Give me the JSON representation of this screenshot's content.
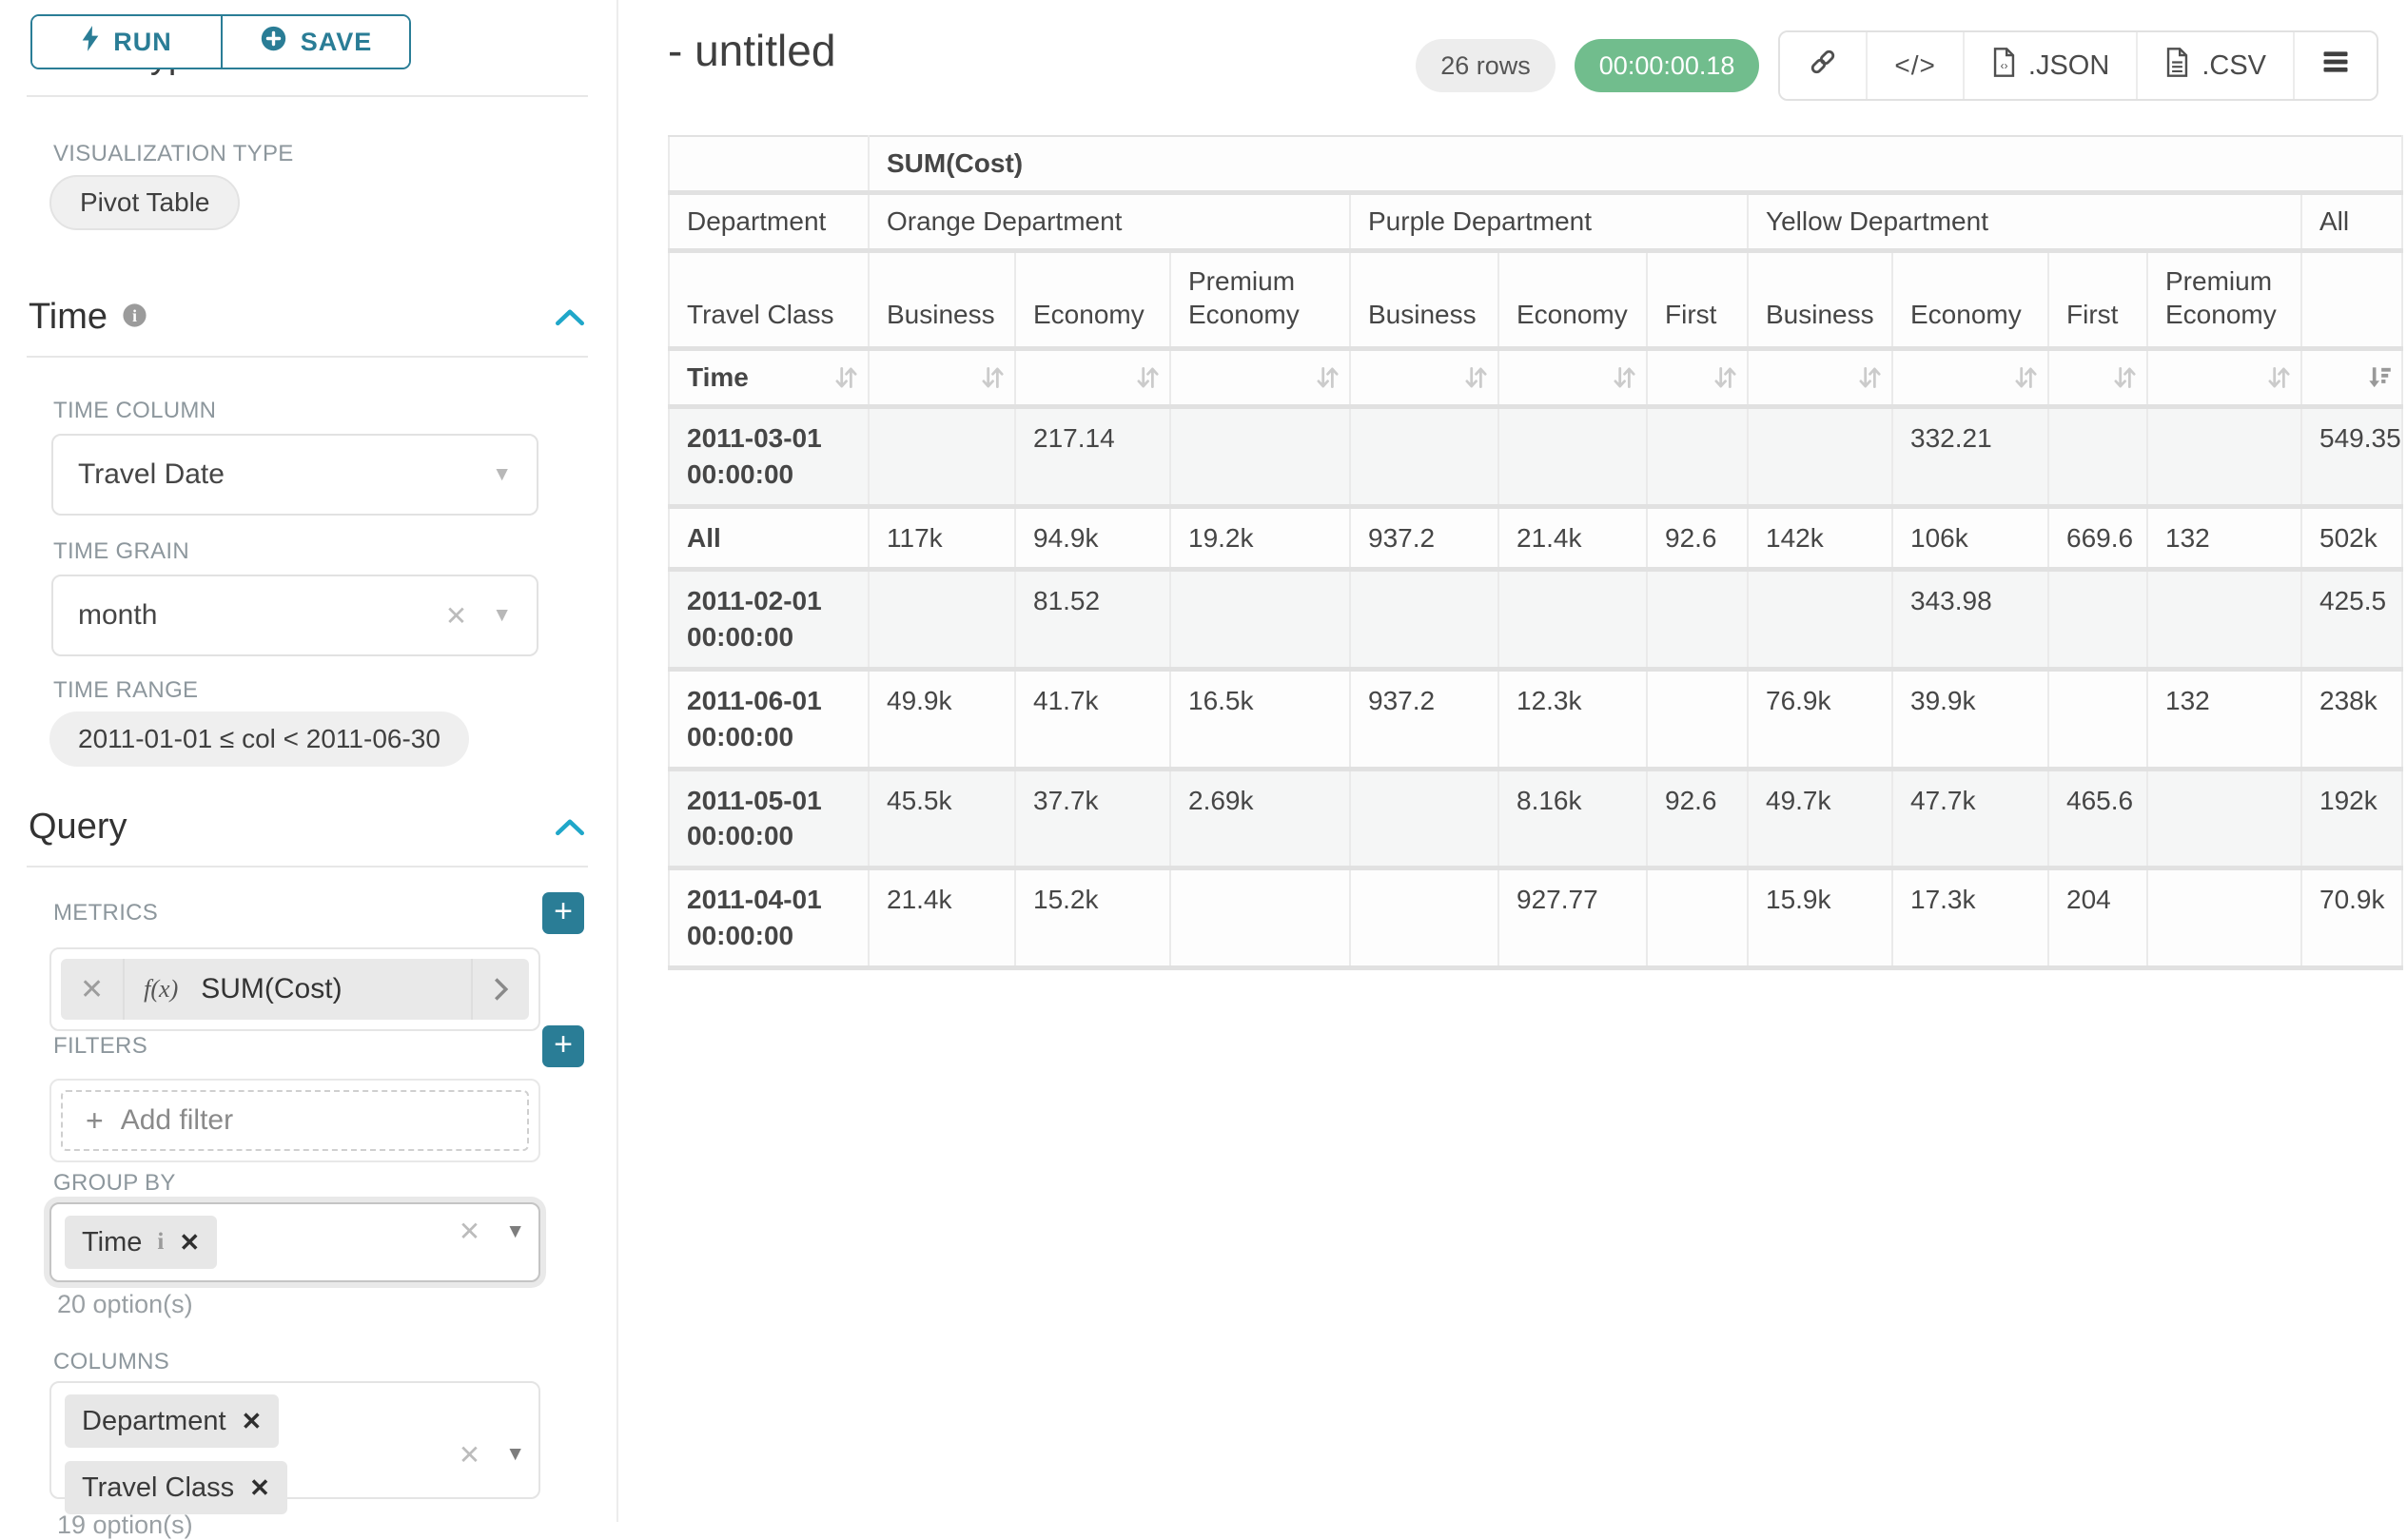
{
  "colors": {
    "accent": "#2a7d96",
    "section_chevron": "#20a7c9",
    "timer_green": "#71bd8d",
    "badge_gray": "#ededed"
  },
  "toolbar": {
    "run_label": "RUN",
    "save_label": "SAVE"
  },
  "sidebar": {
    "chart_type_heading": "Chart Type",
    "viz_type_label": "VISUALIZATION TYPE",
    "viz_type_value": "Pivot Table",
    "time": {
      "title": "Time",
      "column_label": "TIME COLUMN",
      "column_value": "Travel Date",
      "grain_label": "TIME GRAIN",
      "grain_value": "month",
      "range_label": "TIME RANGE",
      "range_value": "2011-01-01 ≤ col < 2011-06-30"
    },
    "query": {
      "title": "Query",
      "metrics_label": "METRICS",
      "metric": {
        "fx": "f(x)",
        "name": "SUM(Cost)"
      },
      "filters_label": "FILTERS",
      "add_filter_label": "Add filter",
      "group_by_label": "GROUP BY",
      "group_by_chips": [
        {
          "label": "Time",
          "has_info": true
        }
      ],
      "group_by_hint": "20 option(s)",
      "columns_label": "COLUMNS",
      "columns_chips": [
        {
          "label": "Department",
          "has_info": false
        },
        {
          "label": "Travel Class",
          "has_info": false
        }
      ],
      "columns_hint": "19 option(s)"
    }
  },
  "header": {
    "title": "- untitled",
    "row_count": "26 rows",
    "timer": "00:00:00.18",
    "export_json_label": ".JSON",
    "export_csv_label": ".CSV"
  },
  "pivot": {
    "metric_header": "SUM(Cost)",
    "row_dim_label": "Department",
    "row_dim2_label": "Travel Class",
    "time_row_label": "Time",
    "col_groups": [
      {
        "label": "Orange Department",
        "span": 3
      },
      {
        "label": "Purple Department",
        "span": 3
      },
      {
        "label": "Yellow Department",
        "span": 4
      },
      {
        "label": "All",
        "span": 1
      }
    ],
    "leaf_headers": [
      "Business",
      "Economy",
      "Premium Economy",
      "Business",
      "Economy",
      "First",
      "Business",
      "Economy",
      "First",
      "Premium Economy",
      ""
    ],
    "active_sort_leaf_index": 10,
    "rows": [
      {
        "label": "2011-03-01 00:00:00",
        "values": [
          "",
          "217.14",
          "",
          "",
          "",
          "",
          "",
          "332.21",
          "",
          "",
          "549.35"
        ]
      },
      {
        "label": "All",
        "values": [
          "117k",
          "94.9k",
          "19.2k",
          "937.2",
          "21.4k",
          "92.6",
          "142k",
          "106k",
          "669.6",
          "132",
          "502k"
        ]
      },
      {
        "label": "2011-02-01 00:00:00",
        "values": [
          "",
          "81.52",
          "",
          "",
          "",
          "",
          "",
          "343.98",
          "",
          "",
          "425.5"
        ]
      },
      {
        "label": "2011-06-01 00:00:00",
        "values": [
          "49.9k",
          "41.7k",
          "16.5k",
          "937.2",
          "12.3k",
          "",
          "76.9k",
          "39.9k",
          "",
          "132",
          "238k"
        ]
      },
      {
        "label": "2011-05-01 00:00:00",
        "values": [
          "45.5k",
          "37.7k",
          "2.69k",
          "",
          "8.16k",
          "92.6",
          "49.7k",
          "47.7k",
          "465.6",
          "",
          "192k"
        ]
      },
      {
        "label": "2011-04-01 00:00:00",
        "values": [
          "21.4k",
          "15.2k",
          "",
          "",
          "927.77",
          "",
          "15.9k",
          "17.3k",
          "204",
          "",
          "70.9k"
        ]
      }
    ]
  }
}
